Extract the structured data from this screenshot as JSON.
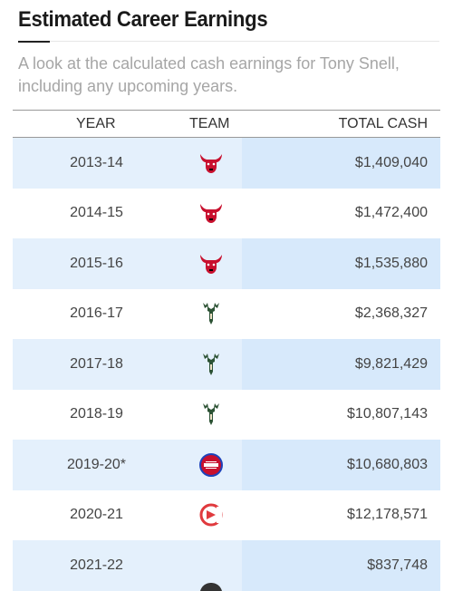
{
  "header": {
    "title": "Estimated Career Earnings",
    "subtitle": "A look at the calculated cash earnings for Tony Snell, including any upcoming years."
  },
  "table": {
    "columns": [
      "YEAR",
      "TEAM",
      "TOTAL CASH"
    ],
    "rows": [
      {
        "year": "2013-14",
        "team_icon": "bulls-logo-icon",
        "cash": "$1,409,040"
      },
      {
        "year": "2014-15",
        "team_icon": "bulls-logo-icon",
        "cash": "$1,472,400"
      },
      {
        "year": "2015-16",
        "team_icon": "bulls-logo-icon",
        "cash": "$1,535,880"
      },
      {
        "year": "2016-17",
        "team_icon": "bucks-logo-icon",
        "cash": "$2,368,327"
      },
      {
        "year": "2017-18",
        "team_icon": "bucks-logo-icon",
        "cash": "$9,821,429"
      },
      {
        "year": "2018-19",
        "team_icon": "bucks-logo-icon",
        "cash": "$10,807,143"
      },
      {
        "year": "2019-20*",
        "team_icon": "pistons-logo-icon",
        "cash": "$10,680,803"
      },
      {
        "year": "2020-21",
        "team_icon": "hawks-logo-icon",
        "cash": "$12,178,571"
      },
      {
        "year": "2021-22",
        "team_icon": "team-logo-icon",
        "cash": "$837,748"
      }
    ]
  },
  "colors": {
    "row_shade": "#e4f0fc",
    "cash_shade": "#d7e9fb",
    "bulls_red": "#c8102e",
    "bucks_green": "#2c5234",
    "pistons_red": "#c8102e",
    "pistons_blue": "#1d42ba",
    "hawks_red": "#e03a3e"
  }
}
